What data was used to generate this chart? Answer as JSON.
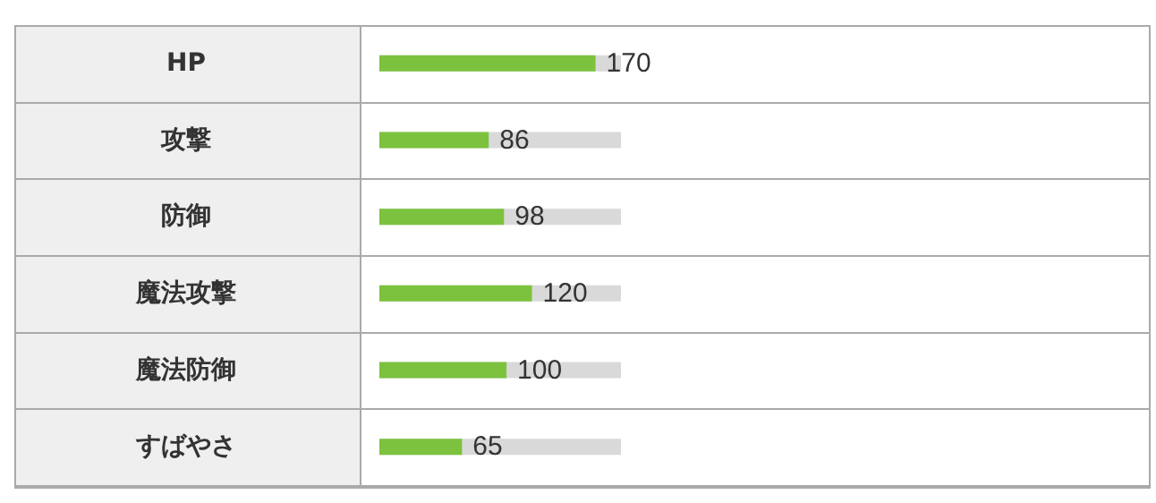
{
  "chart_data": {
    "type": "bar",
    "orientation": "horizontal",
    "categories": [
      "HP",
      "攻撃",
      "防御",
      "魔法攻撃",
      "魔法防御",
      "すばやさ"
    ],
    "values": [
      170,
      86,
      98,
      120,
      100,
      65
    ],
    "color": "#7cc23e",
    "xlim": [
      0,
      190
    ],
    "data_labels": true,
    "tick_labels": "y"
  }
}
